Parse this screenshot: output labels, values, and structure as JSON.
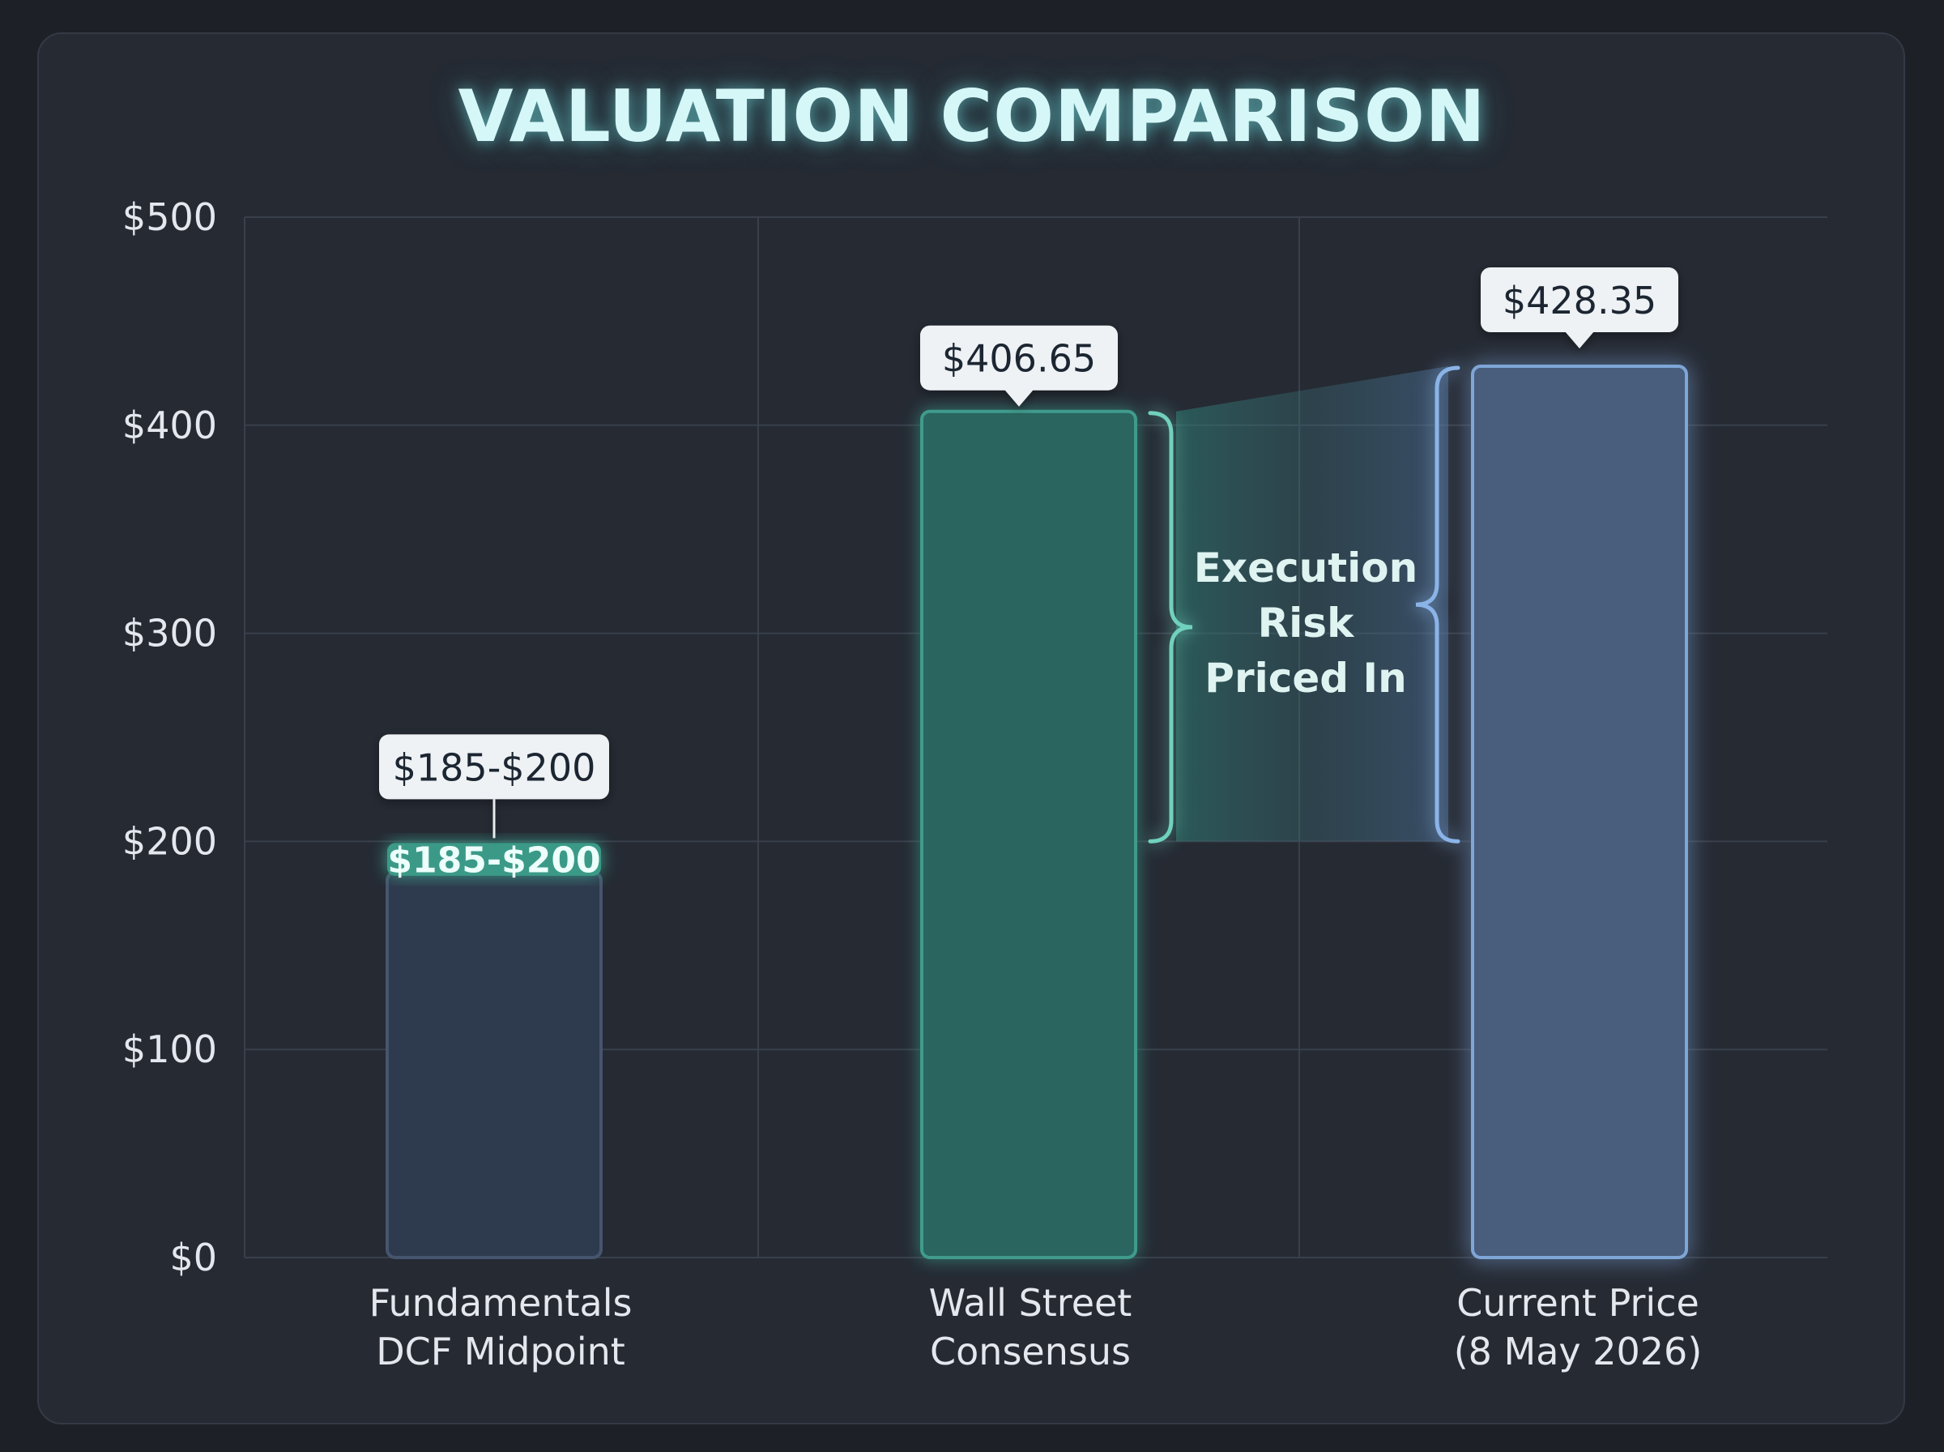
{
  "chart_data": {
    "type": "bar",
    "title": "VALUATION COMPARISON",
    "categories": [
      [
        "Fundamentals",
        "DCF Midpoint"
      ],
      [
        "Wall Street",
        "Consensus"
      ],
      [
        "Current Price",
        "(8 May 2026)"
      ]
    ],
    "values": [
      185,
      406.65,
      428.35
    ],
    "range": {
      "category_index": 0,
      "low": 185,
      "high": 200,
      "label": "$185-$200"
    },
    "data_labels": [
      "$185-$200",
      "$406.65",
      "$428.35"
    ],
    "ylim": [
      0,
      500
    ],
    "yticks": [
      0,
      100,
      200,
      300,
      400,
      500
    ],
    "ytick_labels": [
      "$0",
      "$100",
      "$200",
      "$300",
      "$400",
      "$500"
    ],
    "grid": true,
    "annotation": {
      "lines": [
        "Execution",
        "Risk",
        "Priced In"
      ],
      "from_value": 200
    },
    "colors": {
      "bar_fundamentals": "#2e3a4d",
      "bar_fundamentals_border": "#46556e",
      "bar_consensus": "#2a6561",
      "bar_consensus_border": "#3f9b8c",
      "bar_current": "#485d7d",
      "bar_current_border": "#7ea6d6",
      "range_band": "#3a9a87",
      "grid": "#3a404b"
    }
  }
}
